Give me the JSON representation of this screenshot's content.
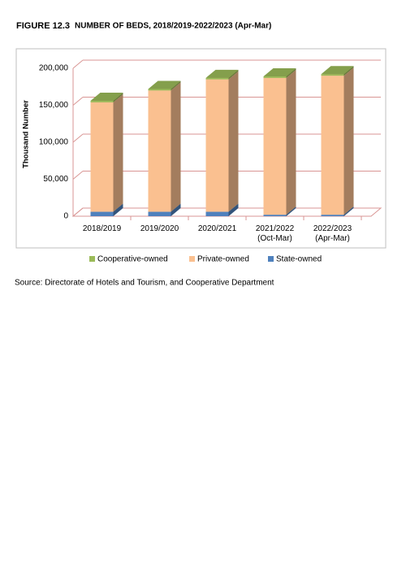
{
  "figure_label": "FIGURE 12.3",
  "source": "Source: Directorate of Hotels and Tourism, and Cooperative Department",
  "chart_data": {
    "type": "stacked-bar-3d",
    "title": "NUMBER OF BEDS, 2018/2019-2022/2023 (Apr-Mar)",
    "y_label": "Thousand Number",
    "categories": [
      "2018/2019",
      "2019/2020",
      "2020/2021",
      "2021/2022\n(Oct-Mar)",
      "2022/2023\n(Apr-Mar)"
    ],
    "series": [
      {
        "name": "Cooperative-owned",
        "color": "#9bbb59",
        "values": [
          2000,
          2000,
          2000,
          2000,
          2000
        ]
      },
      {
        "name": "Private-owned",
        "color": "#fac090",
        "values": [
          148000,
          164000,
          179000,
          185000,
          188000
        ]
      },
      {
        "name": "State-owned",
        "color": "#4f81bd",
        "values": [
          6000,
          6000,
          6000,
          2000,
          2000
        ]
      }
    ],
    "ylim": [
      0,
      200000
    ],
    "yticks": [
      0,
      {
        "value": 50000,
        "label": "50,000"
      },
      {
        "value": 100000,
        "label": "100,000"
      },
      {
        "value": 150000,
        "label": "150,000"
      },
      {
        "value": 200000,
        "label": "200,000"
      }
    ],
    "grid": true
  }
}
